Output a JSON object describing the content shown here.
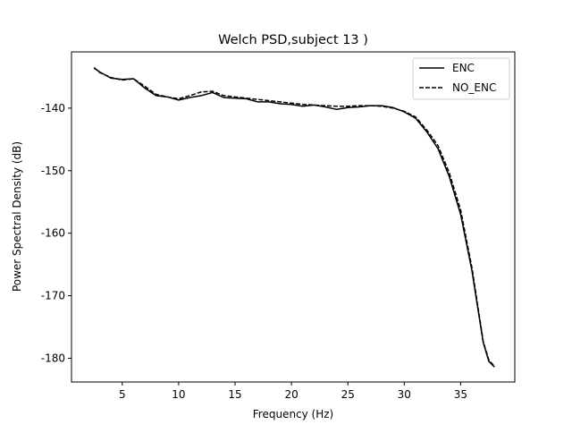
{
  "chart_data": {
    "type": "line",
    "title": "Welch PSD,subject 13 )",
    "xlabel": "Frequency (Hz)",
    "ylabel": "Power Spectral Density (dB)",
    "x": [
      2.5,
      3,
      4,
      5,
      6,
      7,
      8,
      9,
      10,
      11,
      12,
      13,
      14,
      15,
      16,
      17,
      18,
      19,
      20,
      21,
      22,
      23,
      24,
      25,
      26,
      27,
      28,
      29,
      30,
      31,
      32,
      33,
      34,
      35,
      36,
      37,
      37.5,
      38
    ],
    "series": [
      {
        "name": "ENC",
        "color": "#000000",
        "linestyle": "solid",
        "values": [
          -133.6,
          -134.2,
          -135.2,
          -135.4,
          -135.3,
          -136.8,
          -138.0,
          -138.2,
          -138.7,
          -138.3,
          -138.0,
          -137.5,
          -138.3,
          -138.4,
          -138.5,
          -139.0,
          -139.0,
          -139.3,
          -139.4,
          -139.7,
          -139.5,
          -139.8,
          -140.2,
          -139.9,
          -139.8,
          -139.6,
          -139.6,
          -139.9,
          -140.6,
          -141.6,
          -143.8,
          -146.5,
          -151.0,
          -157.0,
          -166.0,
          -177.5,
          -180.5,
          -181.4
        ]
      },
      {
        "name": "NO_ENC",
        "color": "#000000",
        "linestyle": "dashed",
        "values": [
          -133.5,
          -134.3,
          -135.1,
          -135.5,
          -135.3,
          -136.5,
          -137.8,
          -138.2,
          -138.5,
          -138.0,
          -137.4,
          -137.3,
          -138.0,
          -138.2,
          -138.4,
          -138.6,
          -138.8,
          -139.0,
          -139.2,
          -139.4,
          -139.5,
          -139.6,
          -139.7,
          -139.7,
          -139.6,
          -139.6,
          -139.7,
          -140.0,
          -140.5,
          -141.4,
          -143.5,
          -146.0,
          -150.4,
          -156.3,
          -165.5,
          -177.3,
          -180.3,
          -181.3
        ]
      }
    ],
    "xlim": [
      0.5,
      39.8
    ],
    "xticks": [
      5,
      10,
      15,
      20,
      25,
      30,
      35
    ],
    "ylim": [
      -183.8,
      -131.0
    ],
    "yticks": [
      -180,
      -170,
      -160,
      -150,
      -140
    ],
    "legend": "upper right",
    "grid": false
  }
}
